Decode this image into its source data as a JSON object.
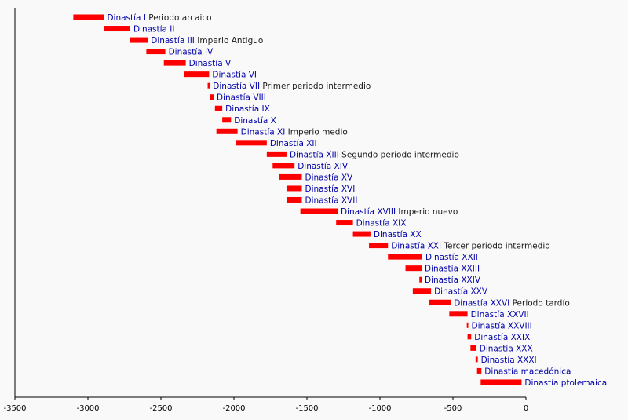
{
  "chart_data": {
    "type": "bar",
    "orientation": "horizontal-range",
    "title": "",
    "xlabel": "",
    "ylabel": "",
    "xlim": [
      -3500,
      0
    ],
    "xticks": [
      "-3500",
      "-3000",
      "-2500",
      "-2000",
      "-1500",
      "-1000",
      "-500",
      "0"
    ],
    "grid": false,
    "legend": "none",
    "bar_color": "#ff0000",
    "name_color": "#0000aa",
    "period_color": "#1a1a1a",
    "bars": [
      {
        "name": "Dinastía I",
        "period": "Periodo arcaico",
        "start": -3100,
        "end": -2890
      },
      {
        "name": "Dinastía II",
        "period": "",
        "start": -2890,
        "end": -2710
      },
      {
        "name": "Dinastía III",
        "period": "Imperio Antiguo",
        "start": -2710,
        "end": -2590
      },
      {
        "name": "Dinastía IV",
        "period": "",
        "start": -2600,
        "end": -2470
      },
      {
        "name": "Dinastía V",
        "period": "",
        "start": -2480,
        "end": -2330
      },
      {
        "name": "Dinastía VI",
        "period": "",
        "start": -2340,
        "end": -2170
      },
      {
        "name": "Dinastía VII",
        "period": "Primer periodo intermedio",
        "start": -2180,
        "end": -2165
      },
      {
        "name": "Dinastía VIII",
        "period": "",
        "start": -2165,
        "end": -2140
      },
      {
        "name": "Dinastía IX",
        "period": "",
        "start": -2130,
        "end": -2080
      },
      {
        "name": "Dinastía X",
        "period": "",
        "start": -2080,
        "end": -2020
      },
      {
        "name": "Dinastía XI",
        "period": "Imperio medio",
        "start": -2120,
        "end": -1975
      },
      {
        "name": "Dinastía XII",
        "period": "",
        "start": -1985,
        "end": -1775
      },
      {
        "name": "Dinastía XIII",
        "period": "Segundo periodo intermedio",
        "start": -1775,
        "end": -1640
      },
      {
        "name": "Dinastía XIV",
        "period": "",
        "start": -1735,
        "end": -1585
      },
      {
        "name": "Dinastía XV",
        "period": "",
        "start": -1690,
        "end": -1535
      },
      {
        "name": "Dinastía XVI",
        "period": "",
        "start": -1640,
        "end": -1535
      },
      {
        "name": "Dinastía XVII",
        "period": "",
        "start": -1640,
        "end": -1535
      },
      {
        "name": "Dinastía XVIII",
        "period": "Imperio nuevo",
        "start": -1545,
        "end": -1290
      },
      {
        "name": "Dinastía XIX",
        "period": "",
        "start": -1300,
        "end": -1185
      },
      {
        "name": "Dinastía XX",
        "period": "",
        "start": -1185,
        "end": -1065
      },
      {
        "name": "Dinastía XXI",
        "period": "Tercer periodo intermedio",
        "start": -1075,
        "end": -945
      },
      {
        "name": "Dinastía XXII",
        "period": "",
        "start": -945,
        "end": -710
      },
      {
        "name": "Dinastía XXIII",
        "period": "",
        "start": -825,
        "end": -715
      },
      {
        "name": "Dinastía XXIV",
        "period": "",
        "start": -730,
        "end": -715
      },
      {
        "name": "Dinastía XXV",
        "period": "",
        "start": -775,
        "end": -650
      },
      {
        "name": "Dinastía XXVI",
        "period": "Periodo tardío",
        "start": -665,
        "end": -515
      },
      {
        "name": "Dinastía XXVII",
        "period": "",
        "start": -525,
        "end": -400
      },
      {
        "name": "Dinastía XXVIII",
        "period": "",
        "start": -405,
        "end": -395
      },
      {
        "name": "Dinastía XXIX",
        "period": "",
        "start": -400,
        "end": -375
      },
      {
        "name": "Dinastía XXX",
        "period": "",
        "start": -380,
        "end": -340
      },
      {
        "name": "Dinastía XXXI",
        "period": "",
        "start": -345,
        "end": -330
      },
      {
        "name": "Dinastía macedónica",
        "period": "",
        "start": -335,
        "end": -305
      },
      {
        "name": "Dinastía ptolemaica",
        "period": "",
        "start": -310,
        "end": -30
      }
    ]
  }
}
